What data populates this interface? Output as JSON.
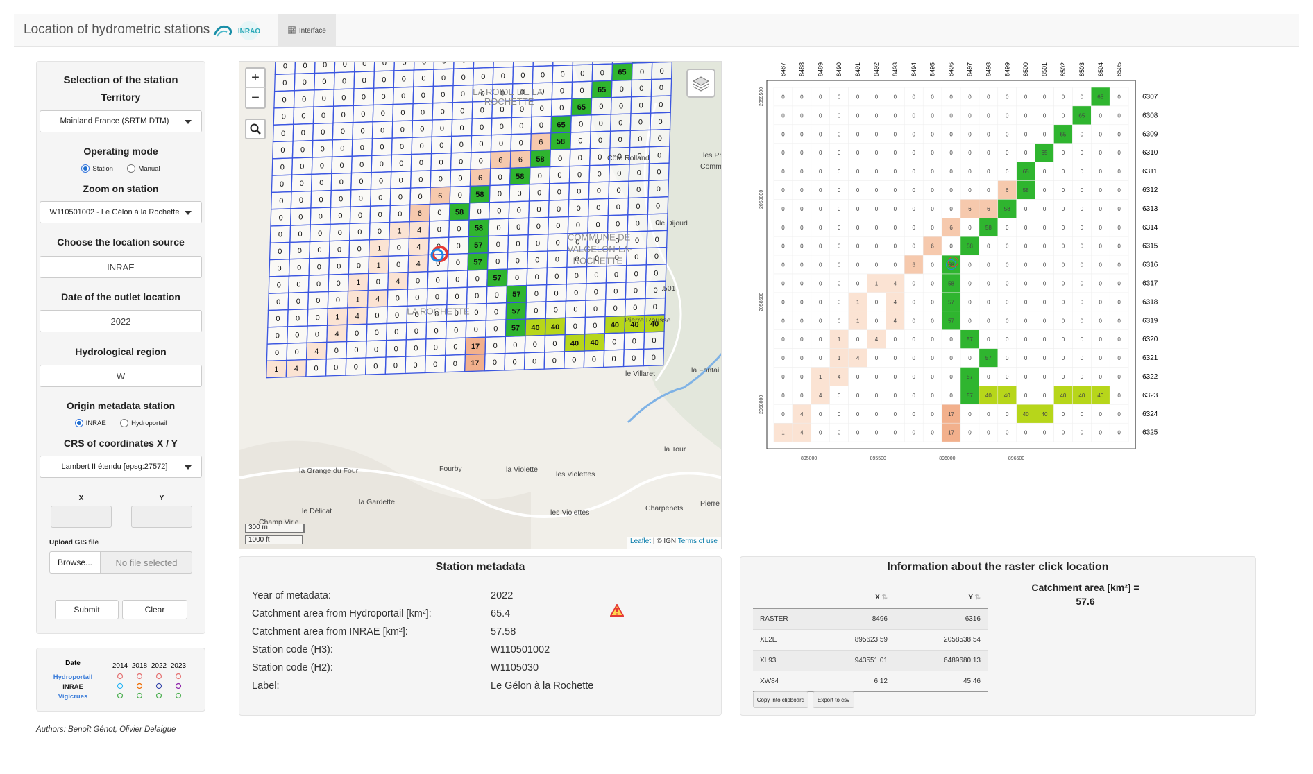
{
  "header": {
    "title": "Location of hydrometric stations",
    "logo_text": "INRAO",
    "tab_label": "Interface"
  },
  "sidebar": {
    "selection_title": "Selection of the station",
    "territory_label": "Territory",
    "territory_value": "Mainland France (SRTM DTM)",
    "operating_mode_label": "Operating mode",
    "mode_station": "Station",
    "mode_manual": "Manual",
    "zoom_label": "Zoom on station",
    "zoom_value": "W110501002 - Le Gélon à la Rochette",
    "location_source_label": "Choose the location source",
    "location_source_value": "INRAE",
    "outlet_date_label": "Date of the outlet location",
    "outlet_date_value": "2022",
    "region_label": "Hydrological region",
    "region_value": "W",
    "origin_label": "Origin metadata station",
    "origin_inrae": "INRAE",
    "origin_hydroportail": "Hydroportail",
    "crs_label": "CRS of coordinates X / Y",
    "crs_value": "Lambert II étendu [epsg:27572]",
    "x_label": "X",
    "y_label": "Y",
    "upload_label": "Upload GIS file",
    "browse_label": "Browse...",
    "no_file": "No file selected",
    "submit_label": "Submit",
    "clear_label": "Clear"
  },
  "legend": {
    "date_label": "Date",
    "years": [
      "2014",
      "2018",
      "2022",
      "2023"
    ],
    "sources": [
      {
        "name": "Hydroportail",
        "color": "#3c7dd9",
        "ring": "#e57373"
      },
      {
        "name": "INRAE",
        "color": "#222222",
        "ring": "#29b6f6"
      },
      {
        "name": "Vigicrues",
        "color": "#3c7dd9",
        "ring": "#4caf50"
      }
    ],
    "inrae_rings": [
      "#29b6f6",
      "#ef6c00",
      "#3949ab",
      "#8e24aa"
    ]
  },
  "map": {
    "zoom_in": "+",
    "zoom_out": "−",
    "scale_m": "300 m",
    "scale_ft": "1000 ft",
    "attribution_leaflet": "Leaflet",
    "attribution_ign": " | © IGN ",
    "attribution_terms": "Terms of use",
    "place_labels": [
      {
        "text": "LA ROIDE DE LA",
        "col": 10,
        "row": 2.6
      },
      {
        "text": "ROCHETTE",
        "col": 10.6,
        "row": 3.2
      },
      {
        "text": "COMMUNE DE",
        "col": 15,
        "row": 11.4
      },
      {
        "text": "VALGELON-LA-",
        "col": 15,
        "row": 12.1
      },
      {
        "text": "ROCHETTE",
        "col": 15.3,
        "row": 12.8
      },
      {
        "text": "LA ROCHETTE",
        "col": 7,
        "row": 15.5
      }
    ],
    "outside_labels": [
      {
        "text": "Côte Rolland",
        "x": 530,
        "y": 142
      },
      {
        "text": "les Pr",
        "x": 668,
        "y": 138
      },
      {
        "text": "Commu",
        "x": 664,
        "y": 154
      },
      {
        "text": "le Dijoud",
        "x": 605,
        "y": 236
      },
      {
        "text": "Pierre Rousse",
        "x": 555,
        "y": 376
      },
      {
        "text": "le Villaret",
        "x": 556,
        "y": 453
      },
      {
        "text": "la Fontai",
        "x": 651,
        "y": 448
      },
      {
        "text": "la Tour",
        "x": 612,
        "y": 562
      },
      {
        "text": "la Grange du Four",
        "x": 86,
        "y": 593
      },
      {
        "text": "Fourby",
        "x": 288,
        "y": 590
      },
      {
        "text": "la Violette",
        "x": 384,
        "y": 591
      },
      {
        "text": "les Violettes",
        "x": 456,
        "y": 598
      },
      {
        "text": "la Gardette",
        "x": 172,
        "y": 638
      },
      {
        "text": "le Délicat",
        "x": 90,
        "y": 651
      },
      {
        "text": "les Violettes",
        "x": 448,
        "y": 653
      },
      {
        "text": "Charpenets",
        "x": 585,
        "y": 647
      },
      {
        "text": "Pierre",
        "x": 664,
        "y": 640
      },
      {
        "text": "Champ Virie",
        "x": 28,
        "y": 667
      },
      {
        "text": ".501",
        "x": 608,
        "y": 330
      }
    ]
  },
  "grid": {
    "rows": [
      [
        0,
        0,
        0,
        0,
        0,
        0,
        0,
        0,
        0,
        0,
        0,
        0,
        0,
        0,
        0,
        0,
        0,
        0,
        65,
        0
      ],
      [
        0,
        0,
        0,
        0,
        0,
        0,
        0,
        0,
        0,
        0,
        0,
        0,
        0,
        0,
        0,
        0,
        0,
        65,
        0,
        0
      ],
      [
        0,
        0,
        0,
        0,
        0,
        0,
        0,
        0,
        0,
        0,
        0,
        0,
        0,
        0,
        0,
        0,
        65,
        0,
        0,
        0
      ],
      [
        0,
        0,
        0,
        0,
        0,
        0,
        0,
        0,
        0,
        0,
        0,
        0,
        0,
        0,
        0,
        65,
        0,
        0,
        0,
        0
      ],
      [
        0,
        0,
        0,
        0,
        0,
        0,
        0,
        0,
        0,
        0,
        0,
        0,
        0,
        0,
        65,
        0,
        0,
        0,
        0,
        0
      ],
      [
        0,
        0,
        0,
        0,
        0,
        0,
        0,
        0,
        0,
        0,
        0,
        0,
        0,
        6,
        58,
        0,
        0,
        0,
        0,
        0
      ],
      [
        0,
        0,
        0,
        0,
        0,
        0,
        0,
        0,
        0,
        0,
        0,
        6,
        6,
        58,
        0,
        0,
        0,
        0,
        0,
        0
      ],
      [
        0,
        0,
        0,
        0,
        0,
        0,
        0,
        0,
        0,
        0,
        6,
        0,
        58,
        0,
        0,
        0,
        0,
        0,
        0,
        0
      ],
      [
        0,
        0,
        0,
        0,
        0,
        0,
        0,
        0,
        6,
        0,
        58,
        0,
        0,
        0,
        0,
        0,
        0,
        0,
        0,
        0
      ],
      [
        0,
        0,
        0,
        0,
        0,
        0,
        0,
        6,
        0,
        58,
        0,
        0,
        0,
        0,
        0,
        0,
        0,
        0,
        0,
        0
      ],
      [
        0,
        0,
        0,
        0,
        0,
        0,
        1,
        4,
        0,
        0,
        58,
        0,
        0,
        0,
        0,
        0,
        0,
        0,
        0,
        0
      ],
      [
        0,
        0,
        0,
        0,
        0,
        1,
        0,
        4,
        0,
        0,
        57,
        0,
        0,
        0,
        0,
        0,
        0,
        0,
        0,
        0
      ],
      [
        0,
        0,
        0,
        0,
        0,
        1,
        0,
        4,
        0,
        0,
        57,
        0,
        0,
        0,
        0,
        0,
        0,
        0,
        0,
        0
      ],
      [
        0,
        0,
        0,
        0,
        1,
        0,
        4,
        0,
        0,
        0,
        0,
        57,
        0,
        0,
        0,
        0,
        0,
        0,
        0,
        0
      ],
      [
        0,
        0,
        0,
        0,
        1,
        4,
        0,
        0,
        0,
        0,
        0,
        0,
        57,
        0,
        0,
        0,
        0,
        0,
        0,
        0
      ],
      [
        0,
        0,
        0,
        1,
        4,
        0,
        0,
        0,
        0,
        0,
        0,
        0,
        57,
        0,
        0,
        0,
        0,
        0,
        0,
        0
      ],
      [
        0,
        0,
        0,
        4,
        0,
        0,
        0,
        0,
        0,
        0,
        0,
        0,
        57,
        40,
        40,
        0,
        0,
        40,
        40,
        40
      ],
      [
        0,
        0,
        4,
        0,
        0,
        0,
        0,
        0,
        0,
        0,
        17,
        0,
        0,
        0,
        0,
        40,
        40,
        0,
        0,
        0
      ],
      [
        1,
        4,
        0,
        0,
        0,
        0,
        0,
        0,
        0,
        0,
        17,
        0,
        0,
        0,
        0,
        0,
        0,
        0,
        0,
        0
      ]
    ]
  },
  "chart_data": {
    "type": "heatmap",
    "title": "",
    "xlabel": "",
    "ylabel": "",
    "col_labels": [
      "8487",
      "8488",
      "8489",
      "8490",
      "8491",
      "8492",
      "8493",
      "8494",
      "8495",
      "8496",
      "8497",
      "8498",
      "8499",
      "8500",
      "8501",
      "8502",
      "8503",
      "8504",
      "8505"
    ],
    "row_labels": [
      "6307",
      "6308",
      "6309",
      "6310",
      "6311",
      "6312",
      "6313",
      "6314",
      "6315",
      "6316",
      "6317",
      "6318",
      "6319",
      "6320",
      "6321",
      "6322",
      "6323",
      "6324",
      "6325"
    ],
    "x_ticks": [
      "895000",
      "895500",
      "896000",
      "896500"
    ],
    "y_ticks": [
      "2059500",
      "2059000",
      "2058500",
      "2058000"
    ],
    "values": [
      [
        0,
        0,
        0,
        0,
        0,
        0,
        0,
        0,
        0,
        0,
        0,
        0,
        0,
        0,
        0,
        0,
        0,
        65,
        0
      ],
      [
        0,
        0,
        0,
        0,
        0,
        0,
        0,
        0,
        0,
        0,
        0,
        0,
        0,
        0,
        0,
        0,
        65,
        0,
        0
      ],
      [
        0,
        0,
        0,
        0,
        0,
        0,
        0,
        0,
        0,
        0,
        0,
        0,
        0,
        0,
        0,
        65,
        0,
        0,
        0
      ],
      [
        0,
        0,
        0,
        0,
        0,
        0,
        0,
        0,
        0,
        0,
        0,
        0,
        0,
        0,
        65,
        0,
        0,
        0,
        0
      ],
      [
        0,
        0,
        0,
        0,
        0,
        0,
        0,
        0,
        0,
        0,
        0,
        0,
        0,
        65,
        0,
        0,
        0,
        0,
        0
      ],
      [
        0,
        0,
        0,
        0,
        0,
        0,
        0,
        0,
        0,
        0,
        0,
        0,
        6,
        58,
        0,
        0,
        0,
        0,
        0
      ],
      [
        0,
        0,
        0,
        0,
        0,
        0,
        0,
        0,
        0,
        0,
        6,
        6,
        58,
        0,
        0,
        0,
        0,
        0,
        0
      ],
      [
        0,
        0,
        0,
        0,
        0,
        0,
        0,
        0,
        0,
        6,
        0,
        58,
        0,
        0,
        0,
        0,
        0,
        0,
        0
      ],
      [
        0,
        0,
        0,
        0,
        0,
        0,
        0,
        0,
        6,
        0,
        58,
        0,
        0,
        0,
        0,
        0,
        0,
        0,
        0
      ],
      [
        0,
        0,
        0,
        0,
        0,
        0,
        0,
        6,
        0,
        58,
        0,
        0,
        0,
        0,
        0,
        0,
        0,
        0,
        0
      ],
      [
        0,
        0,
        0,
        0,
        0,
        1,
        4,
        0,
        0,
        58,
        0,
        0,
        0,
        0,
        0,
        0,
        0,
        0,
        0
      ],
      [
        0,
        0,
        0,
        0,
        1,
        0,
        4,
        0,
        0,
        57,
        0,
        0,
        0,
        0,
        0,
        0,
        0,
        0,
        0
      ],
      [
        0,
        0,
        0,
        0,
        1,
        0,
        4,
        0,
        0,
        57,
        0,
        0,
        0,
        0,
        0,
        0,
        0,
        0,
        0
      ],
      [
        0,
        0,
        0,
        1,
        0,
        4,
        0,
        0,
        0,
        0,
        57,
        0,
        0,
        0,
        0,
        0,
        0,
        0,
        0
      ],
      [
        0,
        0,
        0,
        1,
        4,
        0,
        0,
        0,
        0,
        0,
        0,
        57,
        0,
        0,
        0,
        0,
        0,
        0,
        0
      ],
      [
        0,
        0,
        1,
        4,
        0,
        0,
        0,
        0,
        0,
        0,
        57,
        0,
        0,
        0,
        0,
        0,
        0,
        0,
        0
      ],
      [
        0,
        0,
        4,
        0,
        0,
        0,
        0,
        0,
        0,
        0,
        57,
        40,
        40,
        0,
        0,
        40,
        40,
        40,
        0
      ],
      [
        0,
        4,
        0,
        0,
        0,
        0,
        0,
        0,
        0,
        17,
        0,
        0,
        0,
        40,
        40,
        0,
        0,
        0,
        0
      ],
      [
        1,
        4,
        0,
        0,
        0,
        0,
        0,
        0,
        0,
        17,
        0,
        0,
        0,
        0,
        0,
        0,
        0,
        0,
        0
      ]
    ],
    "marker": {
      "row": 9,
      "col": 9
    }
  },
  "metadata": {
    "title": "Station metadata",
    "rows": [
      {
        "label": "Year of metadata:",
        "value": "2022"
      },
      {
        "label": "Catchment area from Hydroportail [km²]:",
        "value": "65.4"
      },
      {
        "label": "Catchment area from INRAE [km²]:",
        "value": "57.58"
      },
      {
        "label": "Station code (H3):",
        "value": "W110501002"
      },
      {
        "label": "Station code (H2):",
        "value": "W1105030"
      },
      {
        "label": "Label:",
        "value": "Le Gélon à la Rochette"
      }
    ],
    "warning_icon": "warning-icon"
  },
  "raster_info": {
    "title": "Information about the raster click location",
    "col_x": "X",
    "col_y": "Y",
    "rows": [
      {
        "name": "RASTER",
        "x": "8496",
        "y": "6316"
      },
      {
        "name": "XL2E",
        "x": "895623.59",
        "y": "2058538.54"
      },
      {
        "name": "XL93",
        "x": "943551.01",
        "y": "6489680.13"
      },
      {
        "name": "XW84",
        "x": "6.12",
        "y": "45.46"
      }
    ],
    "copy_label": "Copy into clipboard",
    "export_label": "Export to csv",
    "catchment_label": "Catchment area [km²] =",
    "catchment_value": "57.6"
  },
  "authors": "Authors: Benoît Génot, Olivier Delaigue",
  "colors": {
    "green_dark": "#2fb52f",
    "green_light": "#b7d61a",
    "orange": "#f2b08c",
    "grid_line": "#3a55e0",
    "accent": "#1e6ecf"
  }
}
